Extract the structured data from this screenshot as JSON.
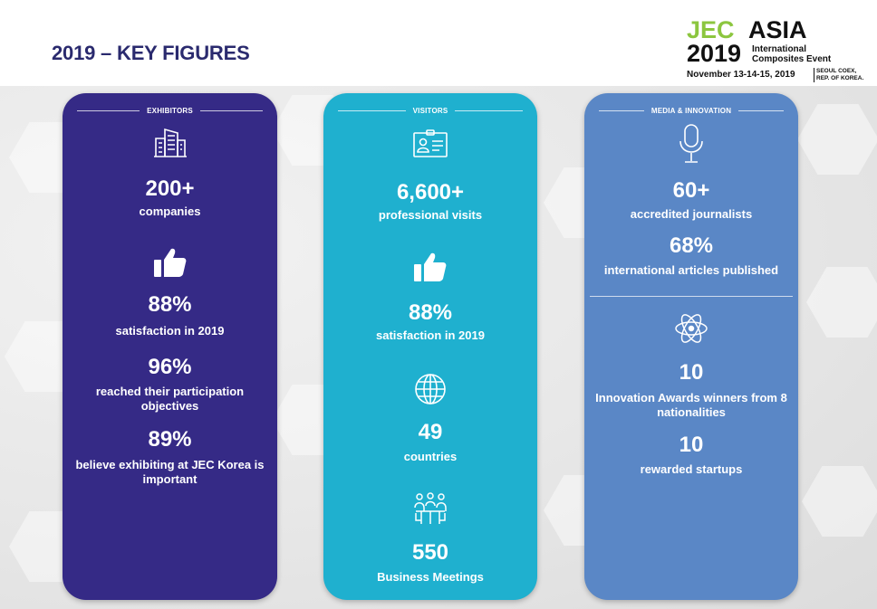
{
  "header": {
    "title": "2019 – KEY FIGURES"
  },
  "logo": {
    "jec": "JEC",
    "asia": "ASIA",
    "year": "2019",
    "subtitle_line1": "International",
    "subtitle_line2": "Composites Event",
    "dates": "November 13-14-15, 2019",
    "venue_line1": "SEOUL COEX,",
    "venue_line2": "REP. OF KOREA."
  },
  "exhibitors": {
    "label": "EXHIBITORS",
    "companies_value": "200+",
    "companies_text": "companies",
    "satisfaction_value": "88%",
    "satisfaction_text": "satisfaction in 2019",
    "objectives_value": "96%",
    "objectives_text_1": "reached their participation",
    "objectives_text_2": "objectives",
    "important_value": "89%",
    "important_text_1": "believe exhibiting at JEC Korea is",
    "important_text_2": "important"
  },
  "visitors": {
    "label": "VISITORS",
    "visits_value": "6,600+",
    "visits_text": "professional visits",
    "satisfaction_value": "88%",
    "satisfaction_text": "satisfaction in 2019",
    "countries_value": "49",
    "countries_text": "countries",
    "meetings_value": "550",
    "meetings_text": "Business Meetings"
  },
  "media": {
    "label": "MEDIA & INNOVATION",
    "journalists_value": "60+",
    "journalists_text": "accredited journalists",
    "articles_value": "68%",
    "articles_text": "international articles published",
    "awards_value": "10",
    "awards_text_1": "Innovation Awards winners from 8",
    "awards_text_2": "nationalities",
    "startups_value": "10",
    "startups_text": "rewarded startups"
  },
  "colors": {
    "exhibitors": "#352a86",
    "visitors": "#1fb0cf",
    "media": "#5a87c6",
    "title": "#2a2a6e",
    "logo_green": "#8cc63f"
  },
  "icons": [
    "building-icon",
    "thumbs-up-icon",
    "id-card-icon",
    "globe-icon",
    "meeting-icon",
    "microphone-icon",
    "atom-icon"
  ]
}
